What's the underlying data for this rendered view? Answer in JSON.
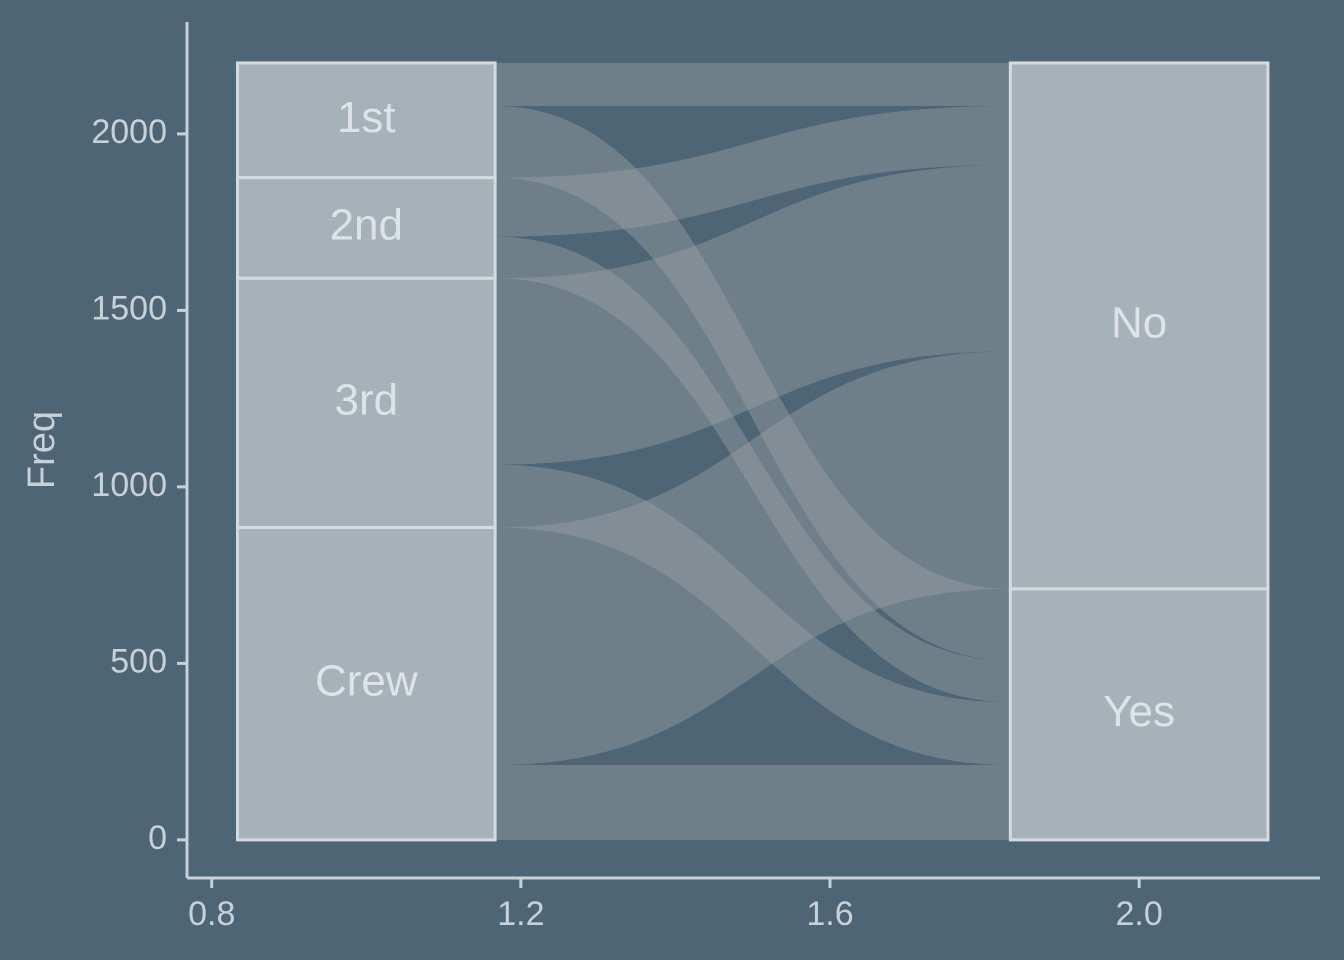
{
  "chart_data": {
    "type": "alluvial",
    "y_label": "Freq",
    "axis1": {
      "categories": [
        "1st",
        "2nd",
        "3rd",
        "Crew"
      ],
      "values": [
        325,
        285,
        706,
        885
      ]
    },
    "axis2": {
      "categories": [
        "No",
        "Yes"
      ],
      "values": [
        1490,
        711
      ]
    },
    "flows": [
      [
        122,
        203
      ],
      [
        167,
        118
      ],
      [
        528,
        178
      ],
      [
        673,
        212
      ]
    ],
    "stratum_color": "#a6b1b8",
    "stratum_border": "#d3dbe0",
    "flow_color": "#9aa0a4",
    "xlim": [
      0.768,
      2.234
    ],
    "ylim": [
      -108,
      2317
    ],
    "xticks": [
      0.8,
      1.2,
      1.6,
      {
        "value": 2,
        "label": "2.0"
      }
    ],
    "yticks": [
      0,
      500,
      1000,
      1500,
      2000
    ]
  }
}
